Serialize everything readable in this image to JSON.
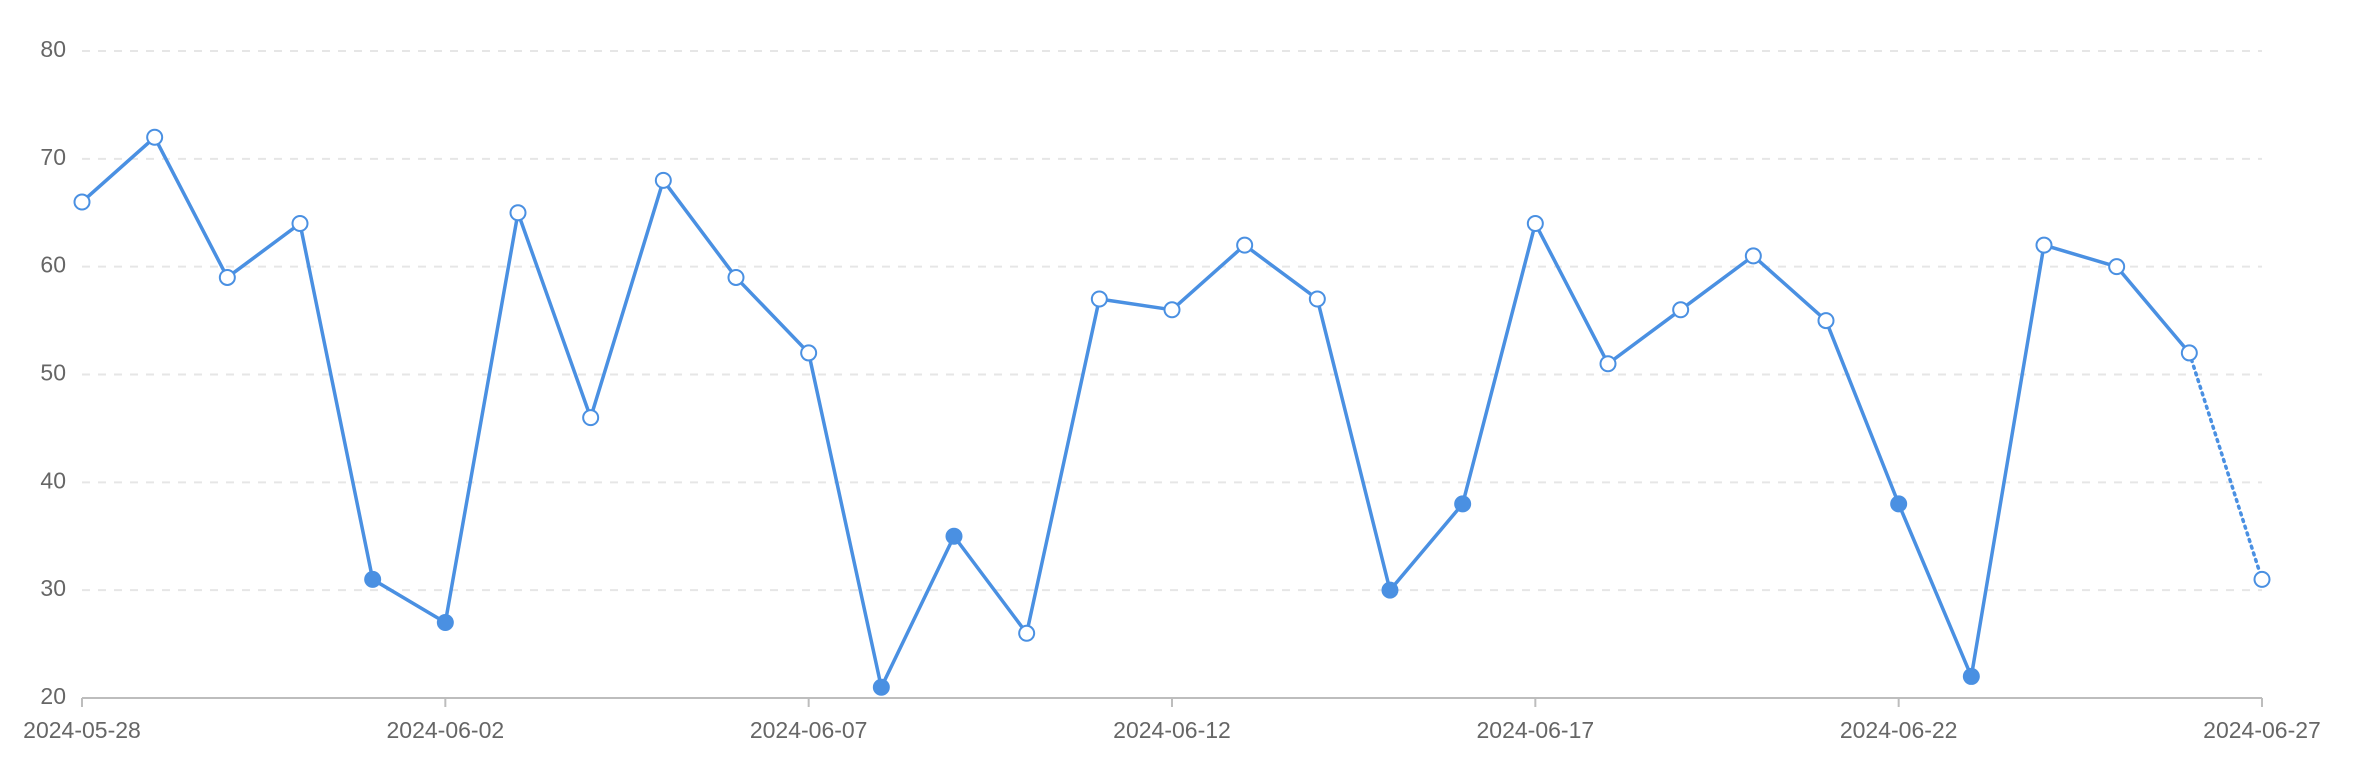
{
  "chart_data": {
    "type": "line",
    "title": "",
    "xlabel": "",
    "ylabel": "",
    "x": [
      "2024-05-28",
      "2024-05-29",
      "2024-05-30",
      "2024-05-31",
      "2024-06-01",
      "2024-06-02",
      "2024-06-03",
      "2024-06-04",
      "2024-06-05",
      "2024-06-06",
      "2024-06-07",
      "2024-06-08",
      "2024-06-09",
      "2024-06-10",
      "2024-06-11",
      "2024-06-12",
      "2024-06-13",
      "2024-06-14",
      "2024-06-15",
      "2024-06-16",
      "2024-06-17",
      "2024-06-18",
      "2024-06-19",
      "2024-06-20",
      "2024-06-21",
      "2024-06-22",
      "2024-06-23",
      "2024-06-24",
      "2024-06-25",
      "2024-06-26",
      "2024-06-27"
    ],
    "series": [
      {
        "values": [
          66,
          72,
          59,
          64,
          31,
          27,
          65,
          46,
          68,
          59,
          52,
          21,
          35,
          26,
          57,
          56,
          62,
          57,
          30,
          38,
          64,
          51,
          56,
          61,
          55,
          38,
          22,
          62,
          60,
          52,
          31
        ],
        "filled_markers": [
          false,
          false,
          false,
          false,
          true,
          true,
          false,
          false,
          false,
          false,
          false,
          true,
          true,
          false,
          false,
          false,
          false,
          false,
          true,
          true,
          false,
          false,
          false,
          false,
          false,
          true,
          true,
          false,
          false,
          false,
          false
        ],
        "dashed_last_segment": true,
        "color": "#4a90e2"
      }
    ],
    "x_ticks": [
      "2024-05-28",
      "2024-06-02",
      "2024-06-07",
      "2024-06-12",
      "2024-06-17",
      "2024-06-22",
      "2024-06-27"
    ],
    "y_ticks": [
      20,
      30,
      40,
      50,
      60,
      70,
      80
    ],
    "ylim": [
      20,
      80
    ],
    "grid": "horizontal-dashed",
    "legend": "none"
  }
}
